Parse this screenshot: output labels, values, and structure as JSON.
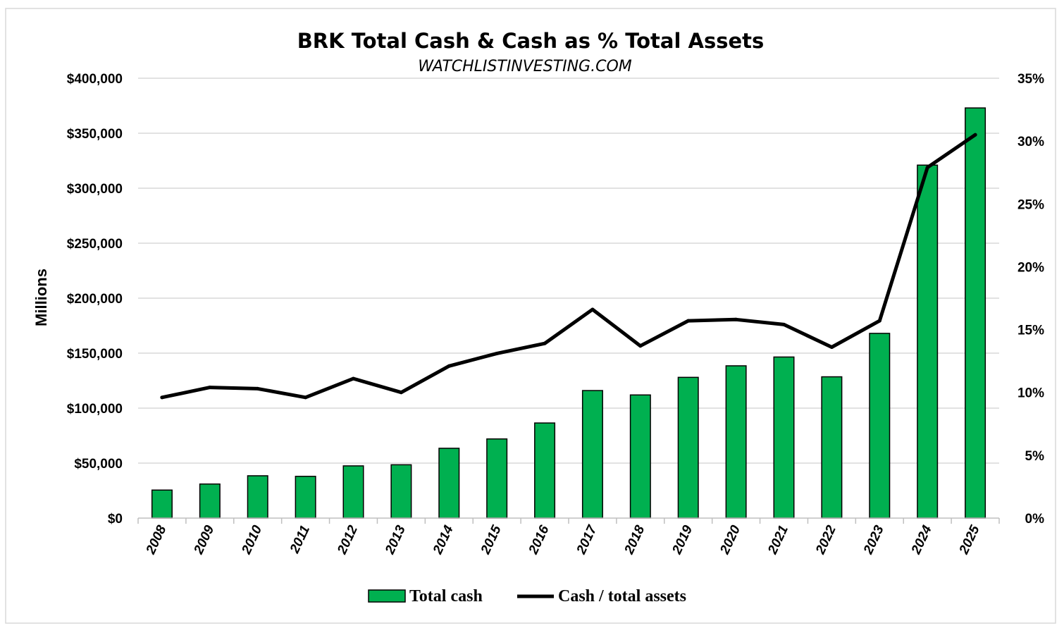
{
  "chart_data": {
    "type": "bar",
    "title": "BRK Total Cash & Cash as % Total Assets",
    "subtitle": "WATCHLISTINVESTING.COM",
    "ylabel": "Millions",
    "ylim": [
      0,
      400000
    ],
    "y2lim": [
      0,
      35
    ],
    "yticks": [
      "$0",
      "$50,000",
      "$100,000",
      "$150,000",
      "$200,000",
      "$250,000",
      "$300,000",
      "$350,000",
      "$400,000"
    ],
    "y2ticks": [
      "0%",
      "5%",
      "10%",
      "15%",
      "20%",
      "25%",
      "30%",
      "35%"
    ],
    "categories": [
      "2008",
      "2009",
      "2010",
      "2011",
      "2012",
      "2013",
      "2014",
      "2015",
      "2016",
      "2017",
      "2018",
      "2019",
      "2020",
      "2021",
      "2022",
      "2023",
      "2024",
      "2025"
    ],
    "series": [
      {
        "name": "Total cash",
        "type": "bar",
        "axis": "left",
        "color": "#00b050",
        "values": [
          25500,
          31000,
          38500,
          38000,
          47500,
          48500,
          63500,
          72000,
          86500,
          116000,
          112000,
          128000,
          138500,
          146500,
          128500,
          168000,
          321000,
          373000
        ]
      },
      {
        "name": "Cash / total assets",
        "type": "line",
        "axis": "right",
        "color": "#000000",
        "values": [
          9.6,
          10.4,
          10.3,
          9.6,
          11.1,
          10.0,
          12.1,
          13.1,
          13.9,
          16.6,
          13.7,
          15.7,
          15.8,
          15.4,
          13.6,
          15.7,
          27.9,
          30.5
        ]
      }
    ],
    "grid": true,
    "legend_position": "bottom"
  }
}
